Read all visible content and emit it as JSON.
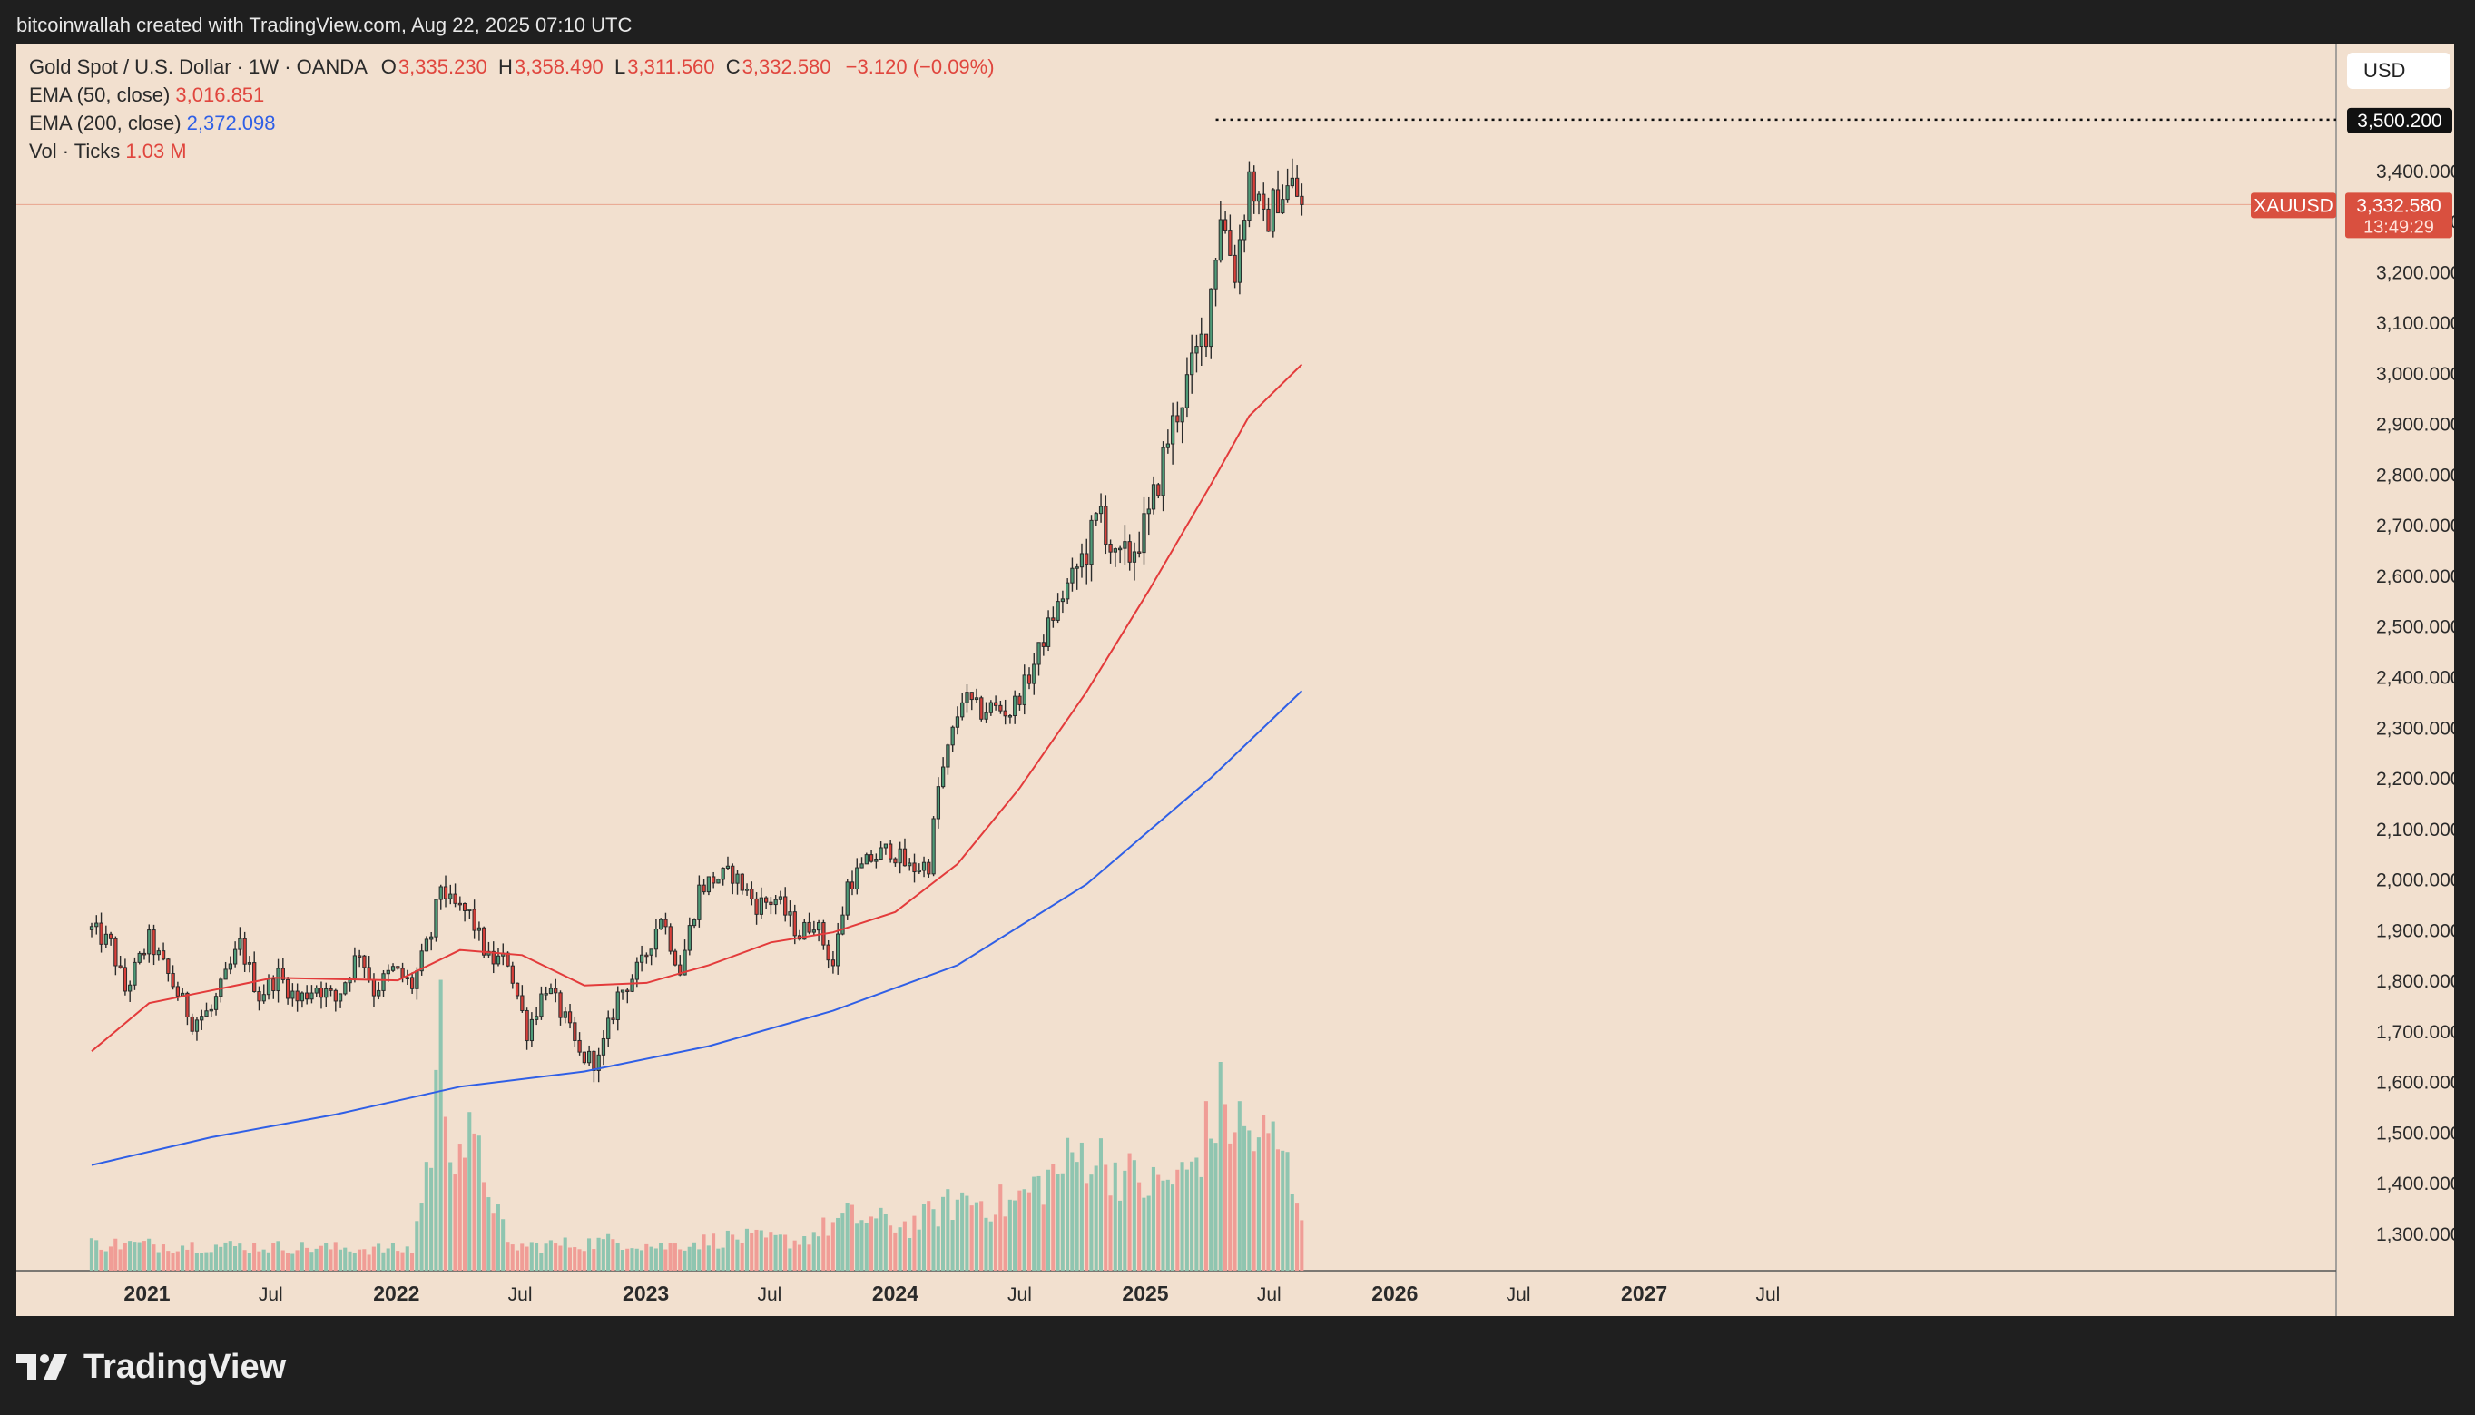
{
  "header": {
    "attribution": "bitcoinwallah created with TradingView.com, Aug 22, 2025 07:10 UTC"
  },
  "legend": {
    "symbol_line": "Gold Spot / U.S. Dollar · 1W · OANDA",
    "open_label": "O",
    "open": "3,335.230",
    "high_label": "H",
    "high": "3,358.490",
    "low_label": "L",
    "low": "3,311.560",
    "close_label": "C",
    "close": "3,332.580",
    "change": "−3.120 (−0.09%)",
    "ema50_label": "EMA (50, close)",
    "ema50_value": "3,016.851",
    "ema200_label": "EMA (200, close)",
    "ema200_value": "2,372.098",
    "vol_label": "Vol · Ticks",
    "vol_value": "1.03 M"
  },
  "currency": "USD",
  "price_tags": {
    "high_line": "3,500.200",
    "symbol": "XAUUSD",
    "last": "3,332.580",
    "countdown": "13:49:29"
  },
  "footer": {
    "brand": "TradingView"
  },
  "colors": {
    "background": "#f2e0cf",
    "up": "#4f9b78",
    "down": "#d8403a",
    "ema50": "#e33b3b",
    "ema200": "#2f5fe6",
    "vol_up": "#8fc5b0",
    "vol_down": "#f09d96",
    "tag_red": "#d9503f"
  },
  "chart_data": {
    "type": "candlestick",
    "title": "Gold Spot / U.S. Dollar · 1W · OANDA",
    "y_axis": {
      "ticks": [
        "3,400.000",
        "3,300.000",
        "3,200.000",
        "3,100.000",
        "3,000.000",
        "2,900.000",
        "2,800.000",
        "2,700.000",
        "2,600.000",
        "2,500.000",
        "2,400.000",
        "2,300.000",
        "2,200.000",
        "2,100.000",
        "2,000.000",
        "1,900.000",
        "1,800.000",
        "1,700.000",
        "1,600.000",
        "1,500.000",
        "1,400.000",
        "1,300.000"
      ],
      "range": [
        1290,
        3530
      ]
    },
    "x_axis": {
      "ticks": [
        "2021",
        "Jul",
        "2022",
        "Jul",
        "2023",
        "Jul",
        "2024",
        "Jul",
        "2025",
        "Jul",
        "2026",
        "Jul",
        "2027",
        "Jul"
      ],
      "bold": [
        "2021",
        "2022",
        "2023",
        "2024",
        "2025",
        "2026",
        "2027"
      ]
    },
    "high_line": 3500.2,
    "last_price": 3332.58,
    "ema50_value": 3016.851,
    "ema200_value": 2372.098,
    "weekly_close_path": [
      [
        "2020-10-12",
        1900
      ],
      [
        "2020-11-09",
        1870
      ],
      [
        "2020-11-30",
        1780
      ],
      [
        "2021-01-04",
        1880
      ],
      [
        "2021-02-01",
        1810
      ],
      [
        "2021-03-08",
        1720
      ],
      [
        "2021-04-05",
        1740
      ],
      [
        "2021-05-17",
        1870
      ],
      [
        "2021-06-14",
        1770
      ],
      [
        "2021-07-12",
        1810
      ],
      [
        "2021-08-09",
        1760
      ],
      [
        "2021-09-06",
        1790
      ],
      [
        "2021-10-04",
        1760
      ],
      [
        "2021-11-08",
        1860
      ],
      [
        "2021-11-29",
        1780
      ],
      [
        "2021-12-27",
        1820
      ],
      [
        "2022-01-24",
        1790
      ],
      [
        "2022-02-21",
        1890
      ],
      [
        "2022-03-07",
        1990
      ],
      [
        "2022-03-21",
        1950
      ],
      [
        "2022-04-18",
        1930
      ],
      [
        "2022-05-16",
        1840
      ],
      [
        "2022-06-13",
        1840
      ],
      [
        "2022-07-11",
        1700
      ],
      [
        "2022-08-08",
        1790
      ],
      [
        "2022-09-05",
        1720
      ],
      [
        "2022-09-26",
        1650
      ],
      [
        "2022-10-24",
        1640
      ],
      [
        "2022-11-21",
        1770
      ],
      [
        "2022-12-26",
        1830
      ],
      [
        "2023-01-23",
        1930
      ],
      [
        "2023-02-20",
        1820
      ],
      [
        "2023-03-20",
        1980
      ],
      [
        "2023-04-10",
        2000
      ],
      [
        "2023-05-08",
        2010
      ],
      [
        "2023-06-12",
        1950
      ],
      [
        "2023-07-10",
        1960
      ],
      [
        "2023-08-14",
        1890
      ],
      [
        "2023-09-04",
        1920
      ],
      [
        "2023-10-02",
        1830
      ],
      [
        "2023-10-23",
        1990
      ],
      [
        "2023-11-27",
        2040
      ],
      [
        "2023-12-25",
        2060
      ],
      [
        "2024-01-22",
        2020
      ],
      [
        "2024-02-19",
        2030
      ],
      [
        "2024-03-04",
        2180
      ],
      [
        "2024-04-08",
        2360
      ],
      [
        "2024-05-06",
        2330
      ],
      [
        "2024-05-20",
        2340
      ],
      [
        "2024-06-17",
        2330
      ],
      [
        "2024-07-15",
        2400
      ],
      [
        "2024-08-12",
        2500
      ],
      [
        "2024-09-09",
        2580
      ],
      [
        "2024-10-07",
        2650
      ],
      [
        "2024-10-28",
        2730
      ],
      [
        "2024-11-18",
        2620
      ],
      [
        "2024-12-09",
        2640
      ],
      [
        "2025-01-06",
        2710
      ],
      [
        "2025-02-03",
        2870
      ],
      [
        "2025-03-03",
        2980
      ],
      [
        "2025-03-31",
        3090
      ],
      [
        "2025-04-21",
        3320
      ],
      [
        "2025-05-12",
        3200
      ],
      [
        "2025-06-02",
        3390
      ],
      [
        "2025-06-23",
        3290
      ],
      [
        "2025-07-14",
        3350
      ],
      [
        "2025-08-04",
        3370
      ],
      [
        "2025-08-18",
        3332.58
      ]
    ],
    "ema50": [
      [
        "2020-10-12",
        1660
      ],
      [
        "2021-01-04",
        1755
      ],
      [
        "2021-07-05",
        1805
      ],
      [
        "2022-01-03",
        1800
      ],
      [
        "2022-04-04",
        1860
      ],
      [
        "2022-07-04",
        1850
      ],
      [
        "2022-10-03",
        1790
      ],
      [
        "2023-01-02",
        1795
      ],
      [
        "2023-04-03",
        1830
      ],
      [
        "2023-07-03",
        1875
      ],
      [
        "2023-10-02",
        1895
      ],
      [
        "2024-01-01",
        1935
      ],
      [
        "2024-04-01",
        2030
      ],
      [
        "2024-07-01",
        2180
      ],
      [
        "2024-10-07",
        2370
      ],
      [
        "2025-01-06",
        2570
      ],
      [
        "2025-04-07",
        2780
      ],
      [
        "2025-06-02",
        2915
      ],
      [
        "2025-08-18",
        3016.851
      ]
    ],
    "ema200": [
      [
        "2020-10-12",
        1435
      ],
      [
        "2021-04-05",
        1490
      ],
      [
        "2021-10-04",
        1535
      ],
      [
        "2022-04-04",
        1590
      ],
      [
        "2022-10-03",
        1620
      ],
      [
        "2023-04-03",
        1670
      ],
      [
        "2023-10-02",
        1740
      ],
      [
        "2024-04-01",
        1830
      ],
      [
        "2024-10-07",
        1990
      ],
      [
        "2025-04-07",
        2200
      ],
      [
        "2025-08-18",
        2372.098
      ]
    ],
    "volume_relative": [
      [
        "2020-10-12",
        0.09
      ],
      [
        "2021-06-28",
        0.08
      ],
      [
        "2022-01-24",
        0.07
      ],
      [
        "2022-02-21",
        0.42
      ],
      [
        "2022-03-07",
        0.8
      ],
      [
        "2022-03-21",
        0.45
      ],
      [
        "2022-04-18",
        0.42
      ],
      [
        "2022-05-16",
        0.3
      ],
      [
        "2022-06-13",
        0.08
      ],
      [
        "2022-09-26",
        0.09
      ],
      [
        "2022-11-21",
        0.1
      ],
      [
        "2023-01-23",
        0.08
      ],
      [
        "2023-05-08",
        0.11
      ],
      [
        "2023-08-14",
        0.1
      ],
      [
        "2023-10-23",
        0.18
      ],
      [
        "2024-01-22",
        0.15
      ],
      [
        "2024-04-08",
        0.24
      ],
      [
        "2024-06-17",
        0.22
      ],
      [
        "2024-10-07",
        0.4
      ],
      [
        "2024-11-18",
        0.34
      ],
      [
        "2025-01-06",
        0.28
      ],
      [
        "2025-03-03",
        0.32
      ],
      [
        "2025-04-21",
        0.55
      ],
      [
        "2025-06-02",
        0.45
      ],
      [
        "2025-07-14",
        0.42
      ],
      [
        "2025-08-18",
        0.22
      ]
    ]
  }
}
